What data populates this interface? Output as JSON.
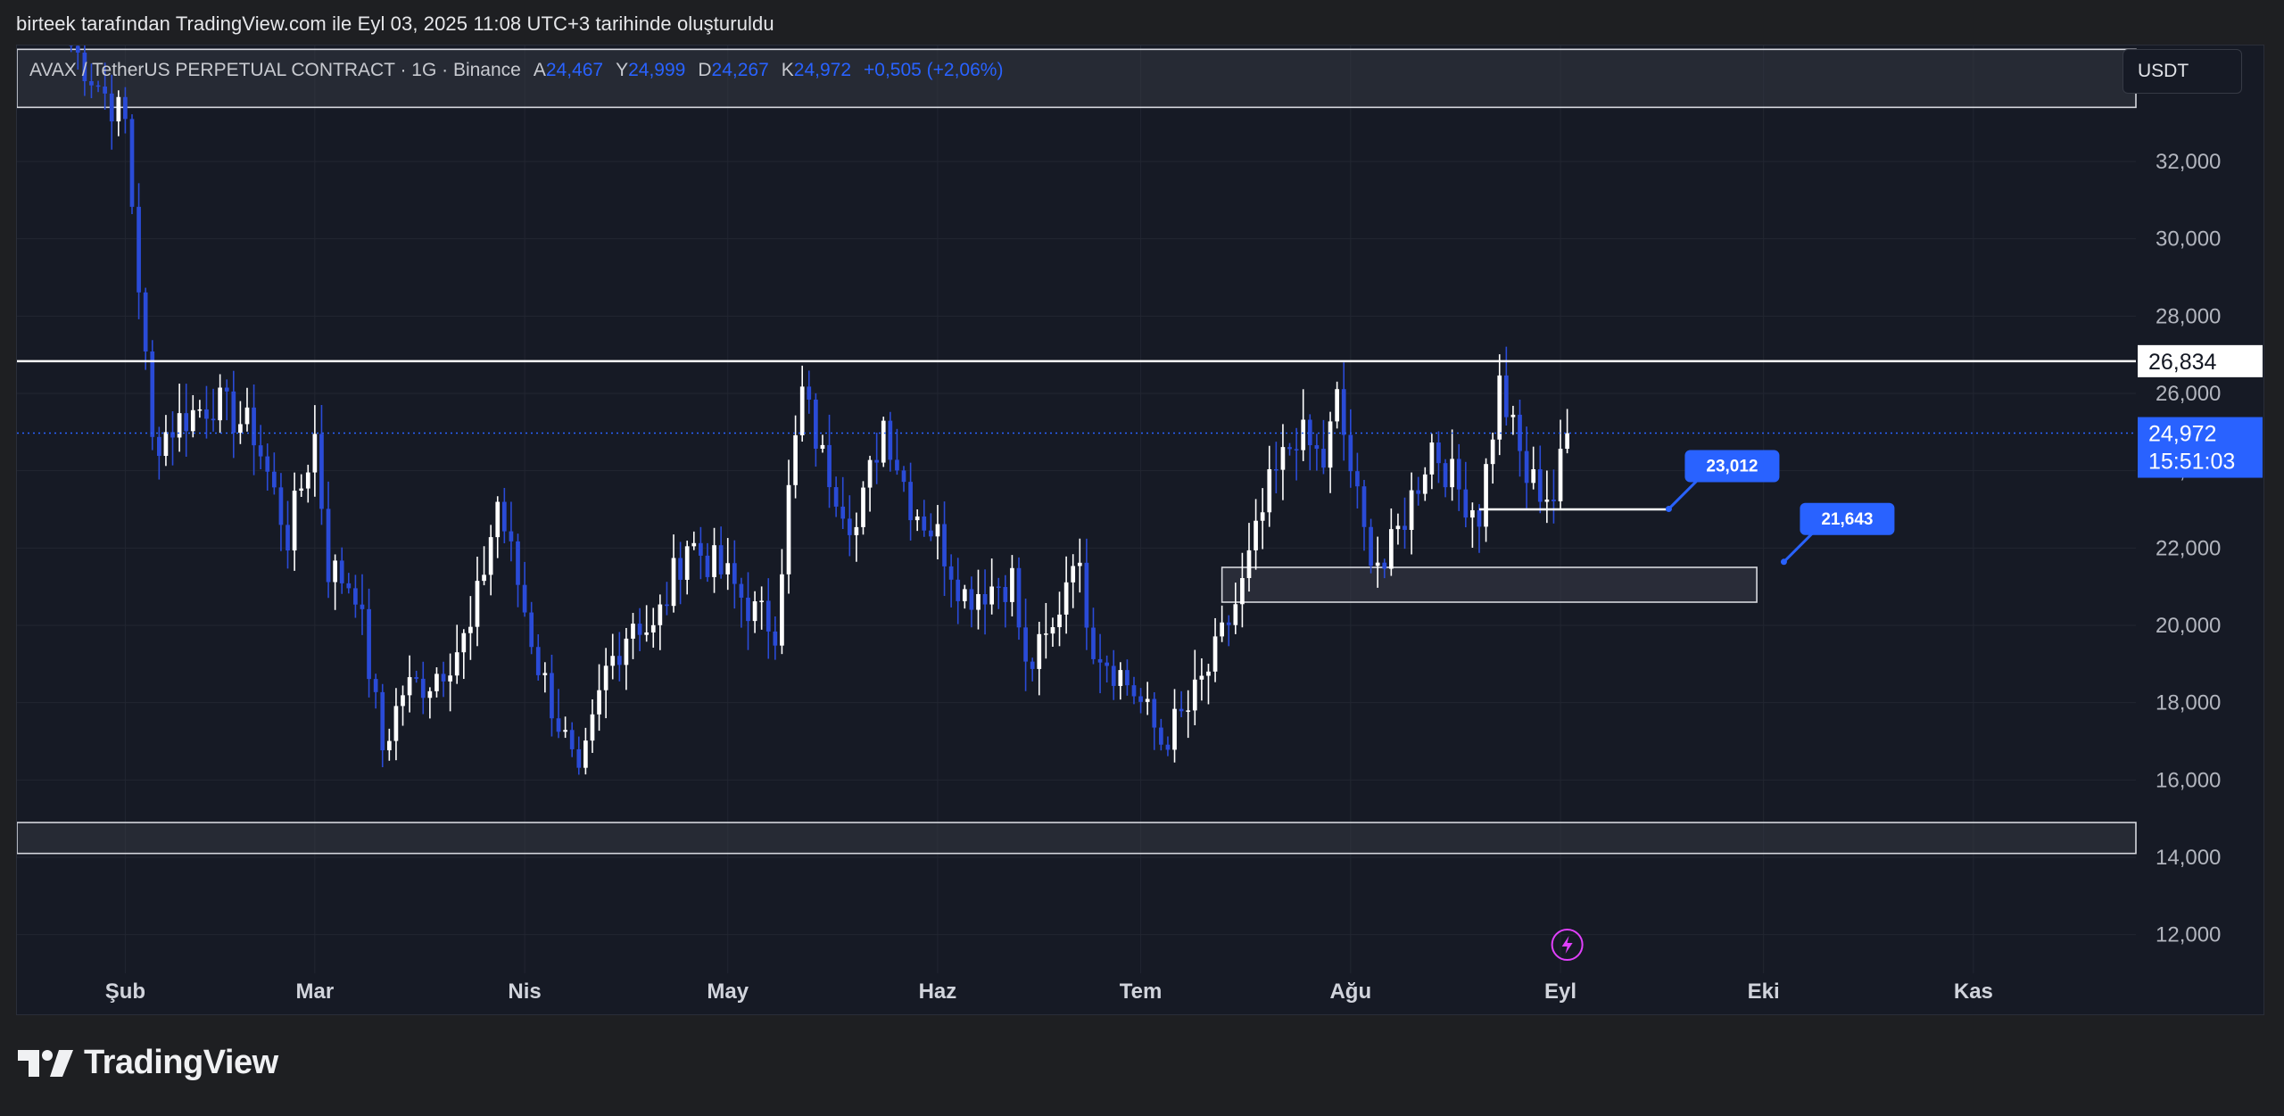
{
  "header": {
    "caption": "birteek tarafından TradingView.com ile Eyl 03, 2025 11:08 UTC+3 tarihinde oluşturuldu"
  },
  "legend": {
    "symbol": "AVAX / TetherUS PERPETUAL CONTRACT · 1G · Binance",
    "open_label": "A",
    "open": "24,467",
    "high_label": "Y",
    "high": "24,999",
    "low_label": "D",
    "low": "24,267",
    "close_label": "K",
    "close": "24,972",
    "change": "+0,505 (+2,06%)"
  },
  "currency_button": "USDT",
  "price_tags": {
    "resistance": "26,834",
    "last_price": "24,972",
    "countdown": "15:51:03"
  },
  "callouts": [
    {
      "label": "23,012",
      "price": 23.012
    },
    {
      "label": "21,643",
      "price": 21.643
    }
  ],
  "brand": {
    "name": "TradingView"
  },
  "colors": {
    "background": "#161a25",
    "up": "#ffffff",
    "down": "#2a4bd7",
    "accent": "#2962ff",
    "grid": "#222631",
    "zone_fill": "#3a3d48",
    "event_icon": "#e040fb"
  },
  "icons": {
    "event": "lightning-icon",
    "logo": "tradingview-logo-icon"
  },
  "chart_data": {
    "type": "candlestick",
    "title": "AVAX / TetherUS PERPETUAL CONTRACT · 1G · Binance",
    "y_axis_ticks": [
      12,
      14,
      16,
      18,
      20,
      22,
      24,
      26,
      28,
      30,
      32
    ],
    "y_tick_labels": [
      "12,000",
      "14,000",
      "16,000",
      "18,000",
      "20,000",
      "22,000",
      "24,000",
      "26,000",
      "28,000",
      "30,000",
      "32,000"
    ],
    "x_tick_labels": [
      {
        "label": "Şub",
        "date": "2025-02-01"
      },
      {
        "label": "Mar",
        "date": "2025-03-01"
      },
      {
        "label": "Nis",
        "date": "2025-04-01"
      },
      {
        "label": "May",
        "date": "2025-05-01"
      },
      {
        "label": "Haz",
        "date": "2025-06-01"
      },
      {
        "label": "Tem",
        "date": "2025-07-01"
      },
      {
        "label": "Ağu",
        "date": "2025-08-01"
      },
      {
        "label": "Eyl",
        "date": "2025-09-01"
      },
      {
        "label": "Eki",
        "date": "2025-10-01"
      },
      {
        "label": "Kas",
        "date": "2025-11-01"
      }
    ],
    "ylim": [
      11,
      35
    ],
    "xlim": [
      "2025-01-16",
      "2025-11-25"
    ],
    "grid": true,
    "horizontal_lines": [
      {
        "price": 26.834,
        "label": "26,834"
      },
      {
        "price": 24.972,
        "label": "24,972",
        "style": "dotted"
      }
    ],
    "zones": [
      {
        "top": 34.9,
        "bottom": 33.4
      },
      {
        "top": 21.5,
        "bottom": 20.6,
        "start": "2025-07-13",
        "end": "2025-09-30"
      },
      {
        "top": 14.9,
        "bottom": 14.1
      }
    ],
    "trend_segment": {
      "start": "2025-08-20",
      "end": "2025-09-17",
      "price": 23.0
    },
    "anchor_points": [
      {
        "date": "2025-01-24",
        "price": 35.0
      },
      {
        "date": "2025-02-01",
        "price": 33.0
      },
      {
        "date": "2025-02-05",
        "price": 24.7
      },
      {
        "date": "2025-02-09",
        "price": 25.3
      },
      {
        "date": "2025-02-14",
        "price": 25.8
      },
      {
        "date": "2025-02-20",
        "price": 25.0
      },
      {
        "date": "2025-02-25",
        "price": 22.3
      },
      {
        "date": "2025-03-01",
        "price": 24.9
      },
      {
        "date": "2025-03-03",
        "price": 21.5
      },
      {
        "date": "2025-03-07",
        "price": 21.0
      },
      {
        "date": "2025-03-11",
        "price": 16.8
      },
      {
        "date": "2025-03-14",
        "price": 18.3
      },
      {
        "date": "2025-03-18",
        "price": 18.6
      },
      {
        "date": "2025-03-24",
        "price": 19.8
      },
      {
        "date": "2025-03-28",
        "price": 23.2
      },
      {
        "date": "2025-04-03",
        "price": 19.0
      },
      {
        "date": "2025-04-07",
        "price": 17.0
      },
      {
        "date": "2025-04-09",
        "price": 15.8
      },
      {
        "date": "2025-04-13",
        "price": 18.8
      },
      {
        "date": "2025-04-17",
        "price": 20.2
      },
      {
        "date": "2025-04-20",
        "price": 19.8
      },
      {
        "date": "2025-04-25",
        "price": 22.2
      },
      {
        "date": "2025-05-01",
        "price": 21.2
      },
      {
        "date": "2025-05-05",
        "price": 20.3
      },
      {
        "date": "2025-05-08",
        "price": 20.0
      },
      {
        "date": "2025-05-10",
        "price": 23.4
      },
      {
        "date": "2025-05-12",
        "price": 26.0
      },
      {
        "date": "2025-05-15",
        "price": 24.3
      },
      {
        "date": "2025-05-20",
        "price": 22.5
      },
      {
        "date": "2025-05-24",
        "price": 25.3
      },
      {
        "date": "2025-05-28",
        "price": 23.2
      },
      {
        "date": "2025-06-01",
        "price": 22.3
      },
      {
        "date": "2025-06-05",
        "price": 20.8
      },
      {
        "date": "2025-06-12",
        "price": 21.2
      },
      {
        "date": "2025-06-14",
        "price": 18.8
      },
      {
        "date": "2025-06-18",
        "price": 19.8
      },
      {
        "date": "2025-06-21",
        "price": 22.0
      },
      {
        "date": "2025-06-24",
        "price": 19.6
      },
      {
        "date": "2025-06-30",
        "price": 18.3
      },
      {
        "date": "2025-07-04",
        "price": 17.0
      },
      {
        "date": "2025-07-08",
        "price": 17.8
      },
      {
        "date": "2025-07-12",
        "price": 19.2
      },
      {
        "date": "2025-07-16",
        "price": 21.0
      },
      {
        "date": "2025-07-20",
        "price": 23.5
      },
      {
        "date": "2025-07-24",
        "price": 25.0
      },
      {
        "date": "2025-07-28",
        "price": 24.2
      },
      {
        "date": "2025-07-30",
        "price": 25.8
      },
      {
        "date": "2025-08-03",
        "price": 22.3
      },
      {
        "date": "2025-08-06",
        "price": 21.5
      },
      {
        "date": "2025-08-10",
        "price": 23.3
      },
      {
        "date": "2025-08-13",
        "price": 24.7
      },
      {
        "date": "2025-08-17",
        "price": 23.5
      },
      {
        "date": "2025-08-20",
        "price": 22.9
      },
      {
        "date": "2025-08-23",
        "price": 26.2
      },
      {
        "date": "2025-08-27",
        "price": 23.8
      },
      {
        "date": "2025-08-31",
        "price": 23.3
      },
      {
        "date": "2025-09-02",
        "price": 24.97
      }
    ]
  }
}
